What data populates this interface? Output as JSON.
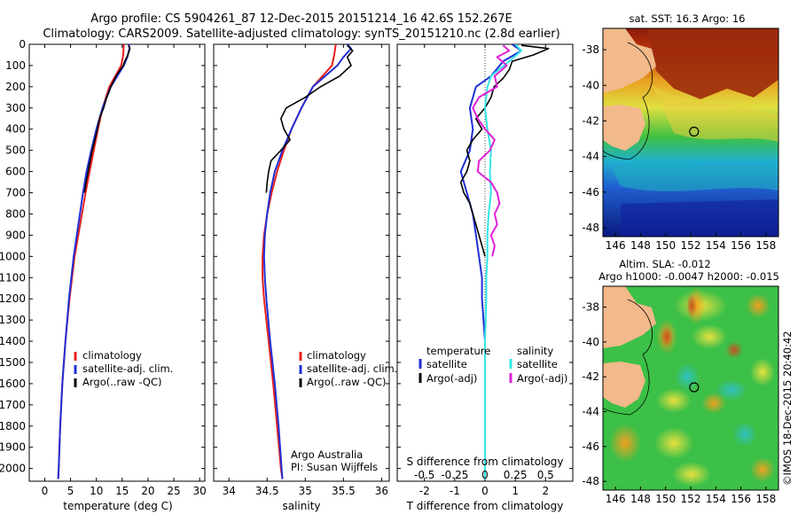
{
  "header": {
    "line1": "Argo profile: CS 5904261_87 12-Dec-2015 20151214_16 42.6S 152.267E",
    "line2": "Climatology: CARS2009. Satellite-adjusted climatology: synTS_20151210.nc (2.8d earlier)"
  },
  "colors": {
    "climatology": "#e8201c",
    "satellite": "#1f2fd6",
    "argo": "#000000",
    "salinity_satellite": "#33e6e6",
    "salinity_argo": "#e020d8"
  },
  "chart_data": [
    {
      "type": "line",
      "xlabel": "temperature (deg C)",
      "ylabel": "",
      "xlim": [
        -3,
        31
      ],
      "ylim": [
        2060,
        0
      ],
      "xticks": [
        "0",
        "5",
        "10",
        "15",
        "20",
        "25",
        "30"
      ],
      "xtick_values": [
        0,
        5,
        10,
        15,
        20,
        25,
        30
      ],
      "yticks": [
        "0",
        "100",
        "200",
        "300",
        "400",
        "500",
        "600",
        "700",
        "800",
        "900",
        "1000",
        "1100",
        "1200",
        "1300",
        "1400",
        "1500",
        "1600",
        "1700",
        "1800",
        "1900",
        "2000"
      ],
      "ytick_values": [
        0,
        100,
        200,
        300,
        400,
        500,
        600,
        700,
        800,
        900,
        1000,
        1100,
        1200,
        1300,
        1400,
        1500,
        1600,
        1700,
        1800,
        1900,
        2000
      ],
      "legend": [
        "climatology",
        "satellite-adj. clim.",
        "Argo(..raw -QC)"
      ],
      "series": [
        {
          "name": "climatology",
          "color_key": "climatology",
          "depth": [
            0,
            50,
            100,
            200,
            300,
            400,
            500,
            600,
            700,
            800,
            900,
            1000,
            1200,
            1400,
            1600,
            1800,
            2000,
            2050
          ],
          "values": [
            15.3,
            15.2,
            14.8,
            12.5,
            11.2,
            10.3,
            9.5,
            8.7,
            7.9,
            7.2,
            6.5,
            5.8,
            4.8,
            4.0,
            3.4,
            3.0,
            2.7,
            2.6
          ]
        },
        {
          "name": "satellite-adj. clim.",
          "color_key": "satellite",
          "depth": [
            0,
            20,
            60,
            100,
            200,
            300,
            400,
            500,
            600,
            700,
            800,
            900,
            1000,
            1200,
            1400,
            1600,
            1800,
            2000,
            2050
          ],
          "values": [
            16.3,
            16.4,
            16.0,
            15.3,
            12.8,
            11.2,
            10.0,
            9.0,
            8.1,
            7.4,
            6.8,
            6.2,
            5.6,
            4.7,
            4.0,
            3.4,
            3.0,
            2.7,
            2.6
          ]
        },
        {
          "name": "Argo(..raw -QC)",
          "color_key": "argo",
          "depth": [
            5,
            20,
            50,
            80,
            100,
            150,
            200,
            250,
            300,
            350,
            400,
            450,
            500,
            550,
            600,
            650,
            700
          ],
          "values": [
            16.2,
            16.5,
            16.1,
            15.5,
            15.2,
            13.8,
            12.8,
            12.0,
            11.4,
            10.6,
            10.2,
            9.7,
            9.2,
            8.8,
            8.4,
            8.0,
            7.7
          ]
        }
      ]
    },
    {
      "type": "line",
      "xlabel": "salinity",
      "ylabel": "",
      "xlim": [
        33.8,
        36.1
      ],
      "ylim": [
        2060,
        0
      ],
      "xticks": [
        "34",
        "34.5",
        "35",
        "35.5",
        "36"
      ],
      "xtick_values": [
        34,
        34.5,
        35,
        35.5,
        36
      ],
      "legend": [
        "climatology",
        "satellite-adj. clim.",
        "Argo(..raw -QC)"
      ],
      "annotation": [
        "Argo Australia",
        "PI: Susan Wijffels"
      ],
      "series": [
        {
          "name": "climatology",
          "color_key": "climatology",
          "depth": [
            0,
            50,
            100,
            200,
            300,
            400,
            500,
            600,
            700,
            800,
            900,
            1000,
            1100,
            1200,
            1400,
            1600,
            1800,
            2000,
            2050
          ],
          "values": [
            35.4,
            35.38,
            35.35,
            35.1,
            34.95,
            34.82,
            34.72,
            34.63,
            34.56,
            34.5,
            34.46,
            34.44,
            34.44,
            34.46,
            34.52,
            34.58,
            34.63,
            34.68,
            34.7
          ]
        },
        {
          "name": "satellite-adj. clim.",
          "color_key": "satellite",
          "depth": [
            0,
            20,
            60,
            100,
            200,
            300,
            400,
            500,
            600,
            700,
            800,
            900,
            1000,
            1100,
            1200,
            1400,
            1600,
            1800,
            2000,
            2050
          ],
          "values": [
            35.55,
            35.6,
            35.5,
            35.42,
            35.1,
            34.95,
            34.82,
            34.7,
            34.6,
            34.54,
            34.5,
            34.47,
            34.46,
            34.47,
            34.49,
            34.54,
            34.6,
            34.65,
            34.69,
            34.7
          ]
        },
        {
          "name": "Argo(..raw -QC)",
          "color_key": "argo",
          "depth": [
            5,
            30,
            60,
            100,
            150,
            200,
            250,
            300,
            350,
            400,
            450,
            500,
            550,
            600,
            650,
            700
          ],
          "values": [
            35.55,
            35.62,
            35.55,
            35.6,
            35.45,
            35.2,
            35.0,
            34.75,
            34.68,
            34.72,
            34.8,
            34.68,
            34.55,
            34.52,
            34.5,
            34.49
          ]
        }
      ]
    },
    {
      "type": "line",
      "xlabel": "T difference from climatology",
      "secondary_xlabel": "S difference from climatology",
      "xlim": [
        -2.9,
        2.9
      ],
      "ylim": [
        2060,
        0
      ],
      "xticks": [
        "-2",
        "-1",
        "0",
        "1",
        "2"
      ],
      "xtick_values": [
        -2,
        -1,
        0,
        1,
        2
      ],
      "secondary_xticks": [
        "-0.5",
        "-0.25",
        "0",
        "0.25",
        "0.5"
      ],
      "secondary_xtick_values": [
        -0.5,
        -0.25,
        0,
        0.25,
        0.5
      ],
      "legend_left_title": "temperature",
      "legend_left": [
        "satellite",
        "Argo(-adj)"
      ],
      "legend_right_title": "salinity",
      "legend_right": [
        "satellite",
        "Argo(-adj)"
      ],
      "series": [
        {
          "name": "T satellite",
          "color_key": "satellite",
          "depth": [
            0,
            30,
            80,
            150,
            200,
            300,
            400,
            500,
            600,
            700,
            800,
            900,
            1000,
            1100,
            1200,
            1400,
            1600,
            1800,
            2000,
            2050
          ],
          "values": [
            0.9,
            1.2,
            0.6,
            0.2,
            -0.3,
            -0.5,
            -0.4,
            -0.5,
            -0.8,
            -0.6,
            -0.4,
            -0.3,
            -0.2,
            -0.1,
            -0.1,
            0.0,
            0.0,
            0.0,
            0.0,
            0.0
          ]
        },
        {
          "name": "T Argo(-adj)",
          "color_key": "argo",
          "depth": [
            5,
            20,
            50,
            80,
            120,
            160,
            200,
            250,
            300,
            350,
            400,
            450,
            500,
            550,
            600,
            650,
            700,
            750,
            800,
            850,
            900,
            1000
          ],
          "values": [
            1.2,
            2.1,
            1.6,
            0.9,
            0.8,
            0.6,
            0.3,
            0.2,
            0.0,
            -0.3,
            -0.1,
            -0.4,
            -0.6,
            -0.5,
            -0.6,
            -0.8,
            -0.7,
            -0.5,
            -0.4,
            -0.3,
            -0.2,
            0.0
          ]
        },
        {
          "name": "S satellite",
          "color_key": "salinity_satellite",
          "depth": [
            0,
            30,
            80,
            150,
            200,
            300,
            400,
            500,
            600,
            700,
            800,
            900,
            1000,
            1100,
            1200,
            1400,
            1600,
            1800,
            2000,
            2050
          ],
          "values": [
            0.25,
            0.3,
            0.2,
            0.05,
            0.02,
            0.0,
            0.02,
            0.05,
            0.04,
            0.05,
            0.03,
            0.02,
            0.02,
            0.01,
            0.01,
            0.0,
            0.0,
            0.0,
            0.0,
            0.0
          ]
        },
        {
          "name": "S Argo(-adj)",
          "color_key": "salinity_argo",
          "depth": [
            5,
            30,
            60,
            100,
            150,
            200,
            250,
            300,
            350,
            400,
            450,
            500,
            550,
            600,
            650,
            700,
            750,
            800,
            850,
            900,
            950,
            1000
          ],
          "values": [
            0.15,
            0.2,
            0.1,
            0.18,
            0.08,
            0.1,
            -0.05,
            -0.1,
            -0.06,
            0.0,
            0.08,
            0.04,
            -0.05,
            -0.06,
            0.05,
            0.1,
            0.12,
            0.08,
            0.1,
            0.05,
            0.08,
            0.06
          ]
        }
      ]
    },
    {
      "type": "heatmap",
      "title": "sat. SST: 16.3 Argo: 16",
      "xlim": [
        145,
        159
      ],
      "ylim": [
        -48.5,
        -36.8
      ],
      "xticks": [
        "146",
        "148",
        "150",
        "152",
        "154",
        "156",
        "158"
      ],
      "xtick_values": [
        146,
        148,
        150,
        152,
        154,
        156,
        158
      ],
      "yticks": [
        "-38",
        "-40",
        "-42",
        "-44",
        "-46",
        "-48"
      ],
      "ytick_values": [
        -38,
        -40,
        -42,
        -44,
        -46,
        -48
      ],
      "marker": {
        "lon": 152.267,
        "lat": -42.6
      }
    },
    {
      "type": "heatmap",
      "title": "Altim. SLA: -0.012",
      "subtitle": "Argo h1000: -0.0047 h2000: -0.015",
      "xlim": [
        145,
        159
      ],
      "ylim": [
        -48.5,
        -36.8
      ],
      "xticks": [
        "146",
        "148",
        "150",
        "152",
        "154",
        "156",
        "158"
      ],
      "xtick_values": [
        146,
        148,
        150,
        152,
        154,
        156,
        158
      ],
      "yticks": [
        "-38",
        "-40",
        "-42",
        "-44",
        "-46",
        "-48"
      ],
      "ytick_values": [
        -38,
        -40,
        -42,
        -44,
        -46,
        -48
      ],
      "marker": {
        "lon": 152.267,
        "lat": -42.6
      }
    }
  ],
  "side_credit": "©IMOS 18-Dec-2015 20:40:42"
}
